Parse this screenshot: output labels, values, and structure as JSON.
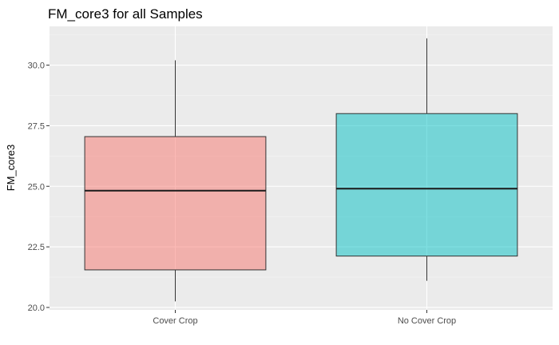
{
  "chart_data": {
    "type": "boxplot",
    "title": "FM_core3 for all Samples",
    "xlabel": "",
    "ylabel": "FM_core3",
    "ylim": [
      19.9,
      31.6
    ],
    "yticks": [
      20.0,
      22.5,
      25.0,
      27.5,
      30.0
    ],
    "ytick_labels": [
      "20.0",
      "22.5",
      "25.0",
      "27.5",
      "30.0"
    ],
    "grid": true,
    "legend": "none",
    "categories": [
      "Cover Crop",
      "No Cover Crop"
    ],
    "boxes": [
      {
        "category": "Cover Crop",
        "min": 20.25,
        "q1": 21.55,
        "median": 24.82,
        "q3": 27.05,
        "max": 30.2,
        "color": "#F8766D"
      },
      {
        "category": "No Cover Crop",
        "min": 21.1,
        "q1": 22.12,
        "median": 24.9,
        "q3": 28.0,
        "max": 31.1,
        "color": "#00BFC4"
      }
    ]
  }
}
